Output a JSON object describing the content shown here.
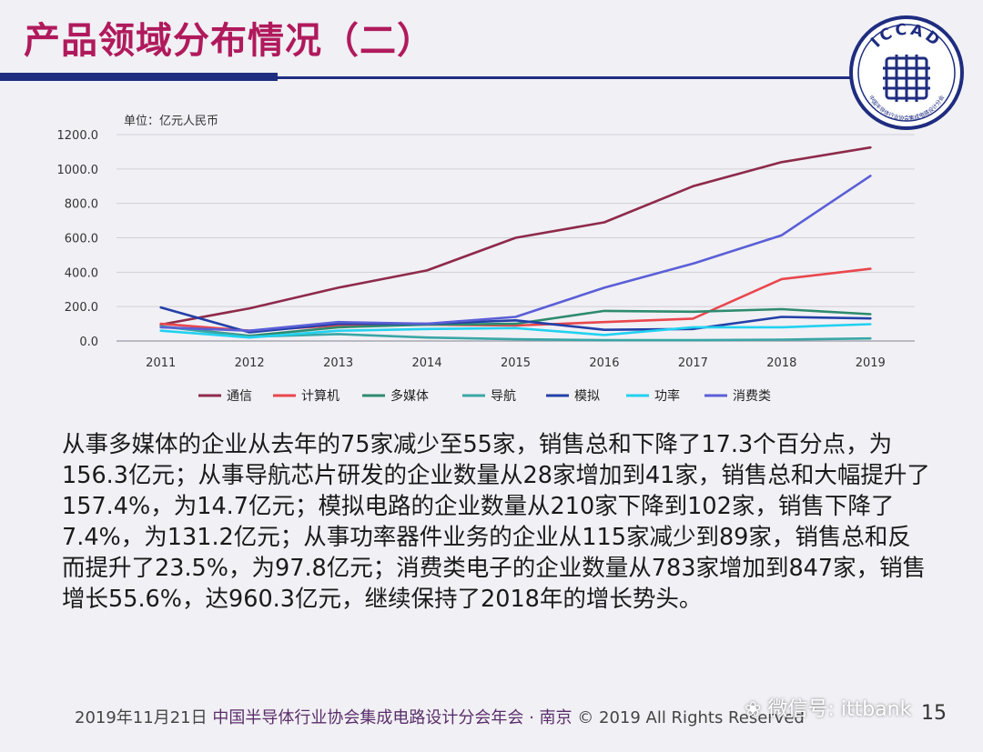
{
  "slide": {
    "title": "产品领域分布情况（二）",
    "title_color": "#b01a5c",
    "rule_color": "#1f2d80"
  },
  "logo": {
    "text": "ICCAD",
    "arc_text": "中国半导体行业协会集成电路设计分会",
    "icon": "circuit-chip-logo-icon"
  },
  "chart_data": {
    "type": "line",
    "unit_label": "单位：亿元人民币",
    "x": [
      "2011",
      "2012",
      "2013",
      "2014",
      "2015",
      "2016",
      "2017",
      "2018",
      "2019"
    ],
    "ylim": [
      0,
      1200
    ],
    "y_ticks": [
      "0.0",
      "200.0",
      "400.0",
      "600.0",
      "800.0",
      "1000.0",
      "1200.0"
    ],
    "grid": true,
    "legend_position": "bottom",
    "series": [
      {
        "name": "通信",
        "color": "#8e2a4a",
        "values": [
          95,
          190,
          310,
          410,
          600,
          690,
          900,
          1040,
          1125
        ]
      },
      {
        "name": "计算机",
        "color": "#e8474d",
        "values": [
          100,
          60,
          90,
          95,
          90,
          110,
          130,
          360,
          420
        ]
      },
      {
        "name": "多媒体",
        "color": "#2e8b6d",
        "values": [
          85,
          30,
          80,
          95,
          100,
          175,
          170,
          185,
          156
        ]
      },
      {
        "name": "导航",
        "color": "#3aa6a6",
        "values": [
          85,
          25,
          40,
          20,
          10,
          5,
          5,
          8,
          15
        ]
      },
      {
        "name": "模拟",
        "color": "#2340a8",
        "values": [
          195,
          50,
          100,
          100,
          120,
          65,
          70,
          140,
          131
        ]
      },
      {
        "name": "功率",
        "color": "#22d1f0",
        "values": [
          60,
          20,
          60,
          70,
          75,
          35,
          80,
          80,
          98
        ]
      },
      {
        "name": "消费类",
        "color": "#5b5fd6",
        "values": [
          80,
          60,
          110,
          100,
          140,
          310,
          450,
          615,
          960
        ]
      }
    ]
  },
  "body": {
    "paragraph": "从事多媒体的企业从去年的75家减少至55家，销售总和下降了17.3个百分点，为156.3亿元；从事导航芯片研发的企业数量从28家增加到41家，销售总和大幅提升了157.4%，为14.7亿元；模拟电路的企业数量从210家下降到102家，销售下降了7.4%，为131.2亿元；从事功率器件业务的企业从115家减少到89家，销售总和反而提升了23.5%，为97.8亿元；消费类电子的企业数量从783家增加到847家，销售增长55.6%，达960.3亿元，继续保持了2018年的增长势头。"
  },
  "footer": {
    "date": "2019年11月21日",
    "org": "中国半导体行业协会集成电路设计分会年会 · 南京",
    "copyright": "© 2019 All Rights Reserved",
    "page_number": "15"
  },
  "watermark": {
    "text": "微信号: ittbank",
    "icon": "wechat-icon"
  }
}
